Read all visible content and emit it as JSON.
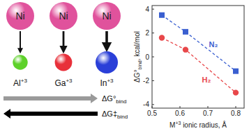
{
  "diagram": {
    "metals": [
      {
        "label": "Ni",
        "color": "#e0529c"
      },
      {
        "label": "Ni",
        "color": "#e0529c"
      },
      {
        "label": "Ni",
        "color": "#e0529c"
      }
    ],
    "ions": [
      {
        "label": "Al",
        "charge": "+3",
        "color": "#5ed12a"
      },
      {
        "label": "Ga",
        "charge": "+3",
        "color": "#e8303a"
      },
      {
        "label": "In",
        "charge": "+3",
        "color": "#2a3fd8"
      }
    ],
    "arrows": [
      {
        "label": "ΔG°",
        "sub": "bind",
        "color": "#9a9a9a",
        "direction": "right"
      },
      {
        "label": "ΔG‡",
        "sub": "bind",
        "color": "#000000",
        "direction": "left"
      }
    ]
  },
  "chart_data": {
    "type": "line",
    "x_label": {
      "pre": "M",
      "sup": "+3",
      "rest": " ionic radius, Å"
    },
    "y_label": {
      "pre": "ΔG°",
      "sub": "bind",
      "rest": ", kcal/mol"
    },
    "x": [
      0.535,
      0.62,
      0.8
    ],
    "series": [
      {
        "name": "N₂",
        "color": "#3a5fd0",
        "marker": "square",
        "line_style": "dashed",
        "values": [
          3.5,
          2.1,
          -1.2
        ]
      },
      {
        "name": "H₂",
        "color": "#e8474a",
        "marker": "circle",
        "line_style": "dashed",
        "values": [
          1.6,
          0.6,
          -3.0
        ]
      }
    ],
    "xlim": [
      0.5,
      0.83
    ],
    "ylim": [
      -4.3,
      4.3
    ],
    "xticks": [
      0.5,
      0.6,
      0.7,
      0.8
    ],
    "yticks": [
      -4,
      -2,
      0,
      2,
      4
    ],
    "grid": false
  }
}
